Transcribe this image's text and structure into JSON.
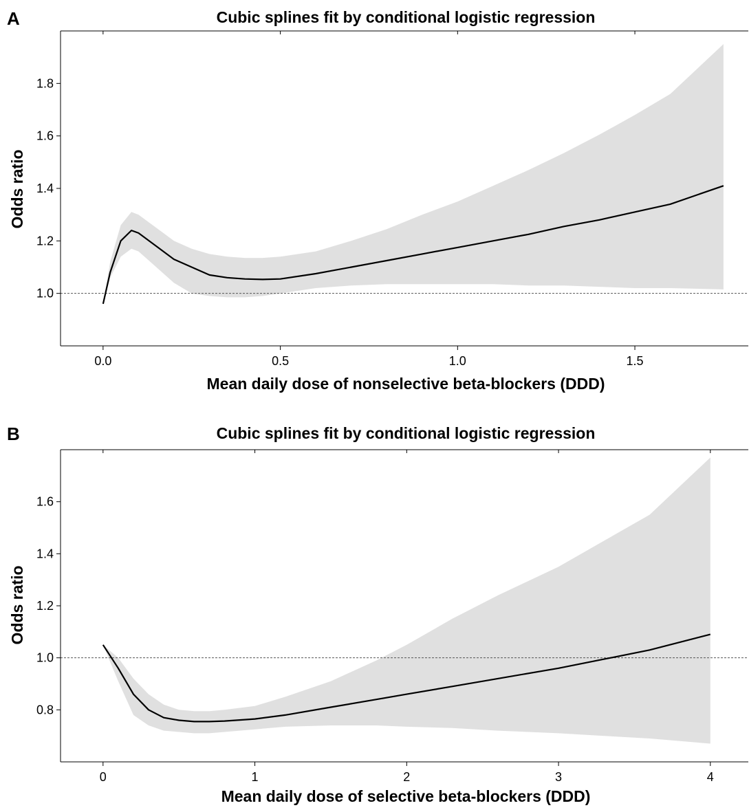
{
  "chart_data": [
    {
      "type": "line",
      "panel_label": "A",
      "title": "Cubic splines fit by conditional logistic regression",
      "xlabel": "Mean daily dose of nonselective beta-blockers (DDD)",
      "ylabel": "Odds ratio",
      "xlim": [
        -0.12,
        1.82
      ],
      "ylim": [
        0.8,
        2.0
      ],
      "xticks": [
        0.0,
        0.5,
        1.0,
        1.5
      ],
      "xtick_labels": [
        "0.0",
        "0.5",
        "1.0",
        "1.5"
      ],
      "yticks": [
        1.0,
        1.2,
        1.4,
        1.6,
        1.8
      ],
      "ytick_labels": [
        "1.0",
        "1.2",
        "1.4",
        "1.6",
        "1.8"
      ],
      "top_ticks": [
        0.0,
        0.5,
        1.0,
        1.5
      ],
      "reference_line": 1.0,
      "series": [
        {
          "x": [
            0.0,
            0.02,
            0.05,
            0.08,
            0.1,
            0.15,
            0.2,
            0.25,
            0.3,
            0.35,
            0.4,
            0.45,
            0.5,
            0.6,
            0.7,
            0.8,
            0.9,
            1.0,
            1.1,
            1.2,
            1.3,
            1.4,
            1.5,
            1.6,
            1.75
          ],
          "y": [
            0.96,
            1.08,
            1.2,
            1.24,
            1.23,
            1.18,
            1.13,
            1.1,
            1.07,
            1.06,
            1.055,
            1.053,
            1.055,
            1.075,
            1.1,
            1.125,
            1.15,
            1.175,
            1.2,
            1.225,
            1.255,
            1.28,
            1.31,
            1.34,
            1.41
          ],
          "lower": [
            0.96,
            1.06,
            1.14,
            1.17,
            1.16,
            1.1,
            1.04,
            1.0,
            0.99,
            0.985,
            0.985,
            0.99,
            1.0,
            1.02,
            1.03,
            1.035,
            1.035,
            1.035,
            1.035,
            1.03,
            1.03,
            1.025,
            1.02,
            1.02,
            1.015
          ],
          "upper": [
            0.96,
            1.12,
            1.26,
            1.31,
            1.3,
            1.25,
            1.2,
            1.17,
            1.15,
            1.14,
            1.135,
            1.135,
            1.14,
            1.16,
            1.2,
            1.245,
            1.3,
            1.35,
            1.41,
            1.47,
            1.535,
            1.605,
            1.68,
            1.76,
            1.95
          ]
        }
      ]
    },
    {
      "type": "line",
      "panel_label": "B",
      "title": "Cubic splines fit by conditional logistic regression",
      "xlabel": "Mean daily dose of selective beta-blockers (DDD)",
      "ylabel": "Odds ratio",
      "xlim": [
        -0.28,
        4.25
      ],
      "ylim": [
        0.6,
        1.8
      ],
      "xticks": [
        0,
        1,
        2,
        3,
        4
      ],
      "xtick_labels": [
        "0",
        "1",
        "2",
        "3",
        "4"
      ],
      "yticks": [
        0.8,
        1.0,
        1.2,
        1.4,
        1.6
      ],
      "ytick_labels": [
        "0.8",
        "1.0",
        "1.2",
        "1.4",
        "1.6"
      ],
      "top_ticks": [
        0,
        1,
        2,
        3,
        4
      ],
      "reference_line": 1.0,
      "series": [
        {
          "x": [
            0.0,
            0.1,
            0.2,
            0.3,
            0.4,
            0.5,
            0.6,
            0.7,
            0.8,
            1.0,
            1.2,
            1.5,
            1.8,
            2.0,
            2.3,
            2.6,
            3.0,
            3.3,
            3.6,
            4.0
          ],
          "y": [
            1.05,
            0.96,
            0.86,
            0.8,
            0.77,
            0.76,
            0.755,
            0.755,
            0.757,
            0.765,
            0.78,
            0.81,
            0.84,
            0.86,
            0.89,
            0.92,
            0.96,
            0.995,
            1.03,
            1.09
          ],
          "lower": [
            1.05,
            0.91,
            0.78,
            0.74,
            0.72,
            0.715,
            0.71,
            0.71,
            0.715,
            0.725,
            0.735,
            0.74,
            0.74,
            0.735,
            0.73,
            0.72,
            0.71,
            0.7,
            0.69,
            0.67
          ],
          "upper": [
            1.05,
            1.0,
            0.92,
            0.86,
            0.82,
            0.8,
            0.795,
            0.795,
            0.8,
            0.815,
            0.85,
            0.91,
            0.99,
            1.05,
            1.15,
            1.24,
            1.35,
            1.45,
            1.55,
            1.77
          ]
        }
      ]
    }
  ]
}
